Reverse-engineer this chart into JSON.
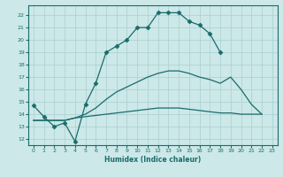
{
  "xlabel": "Humidex (Indice chaleur)",
  "ylabel": "",
  "xlim": [
    -0.5,
    23.5
  ],
  "ylim": [
    11.5,
    22.8
  ],
  "yticks": [
    12,
    13,
    14,
    15,
    16,
    17,
    18,
    19,
    20,
    21,
    22
  ],
  "xticks": [
    0,
    1,
    2,
    3,
    4,
    5,
    6,
    7,
    8,
    9,
    10,
    11,
    12,
    13,
    14,
    15,
    16,
    17,
    18,
    19,
    20,
    21,
    22,
    23
  ],
  "bg_color": "#cce8e8",
  "grid_color": "#aacfcf",
  "line_color": "#1a6b6b",
  "lines": [
    {
      "x": [
        0,
        1,
        2,
        3,
        4,
        5,
        6,
        7,
        8,
        9,
        10,
        11,
        12,
        13,
        14,
        15,
        16,
        17,
        18
      ],
      "y": [
        14.7,
        13.8,
        13.0,
        13.3,
        11.8,
        14.8,
        16.5,
        19.0,
        19.5,
        20.0,
        21.0,
        21.0,
        22.2,
        22.2,
        22.2,
        21.5,
        21.2,
        20.5,
        19.0
      ],
      "marker": "D",
      "markersize": 2.5
    },
    {
      "x": [
        0,
        3,
        4,
        5,
        6,
        7,
        8,
        9,
        10,
        11,
        12,
        13,
        14,
        15,
        16,
        17,
        18,
        19,
        20,
        21,
        22
      ],
      "y": [
        13.5,
        13.5,
        13.7,
        14.0,
        14.5,
        15.2,
        15.8,
        16.2,
        16.6,
        17.0,
        17.3,
        17.5,
        17.5,
        17.3,
        17.0,
        16.8,
        16.5,
        17.0,
        16.0,
        14.8,
        14.0
      ],
      "marker": null,
      "markersize": 0
    },
    {
      "x": [
        0,
        3,
        4,
        5,
        6,
        7,
        8,
        9,
        10,
        11,
        12,
        13,
        14,
        15,
        16,
        17,
        18,
        19,
        20,
        21,
        22
      ],
      "y": [
        13.5,
        13.5,
        13.7,
        13.8,
        13.9,
        14.0,
        14.1,
        14.2,
        14.3,
        14.4,
        14.5,
        14.5,
        14.5,
        14.4,
        14.3,
        14.2,
        14.1,
        14.1,
        14.0,
        14.0,
        14.0
      ],
      "marker": null,
      "markersize": 0
    }
  ]
}
